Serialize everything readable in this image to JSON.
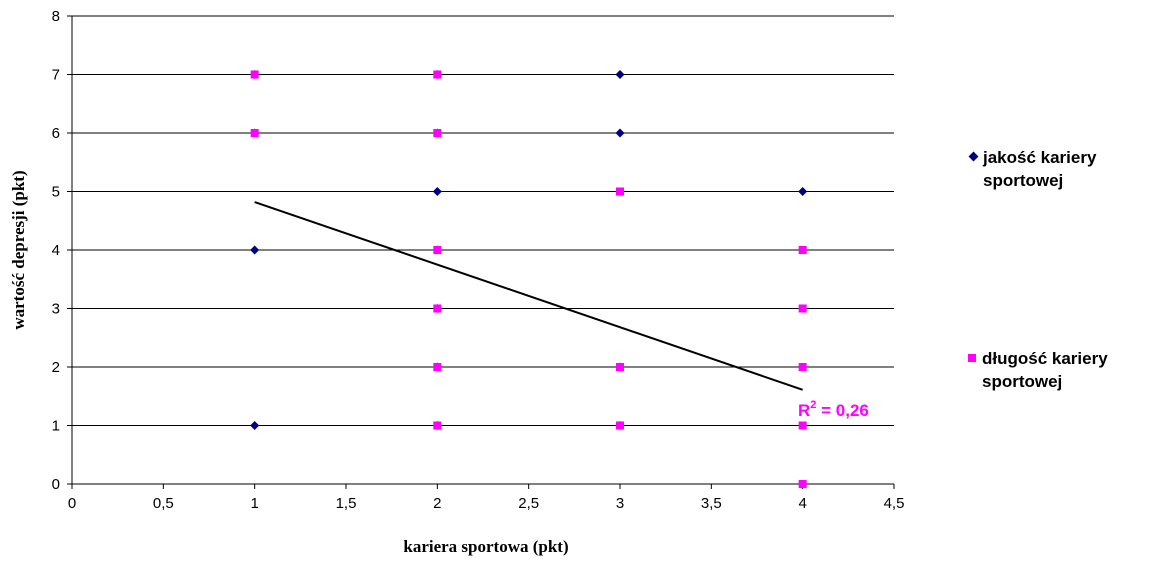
{
  "chart_data": {
    "type": "scatter",
    "title": "",
    "xlabel": "kariera sportowa (pkt)",
    "ylabel": "wartość depresji (pkt)",
    "xlim": [
      0,
      4.5
    ],
    "ylim": [
      0,
      8
    ],
    "x_ticks": [
      "0",
      "0,5",
      "1",
      "1,5",
      "2",
      "2,5",
      "3",
      "3,5",
      "4",
      "4,5"
    ],
    "y_ticks": [
      "0",
      "1",
      "2",
      "3",
      "4",
      "5",
      "6",
      "7",
      "8"
    ],
    "grid": "horizontal",
    "legend_position": "right",
    "series": [
      {
        "name": "jakość kariery sportowej",
        "marker": "diamond",
        "color": "#000080",
        "points": [
          [
            1,
            7
          ],
          [
            1,
            6
          ],
          [
            1,
            4
          ],
          [
            1,
            1
          ],
          [
            2,
            7
          ],
          [
            2,
            6
          ],
          [
            2,
            5
          ],
          [
            2,
            4
          ],
          [
            2,
            3
          ],
          [
            2,
            2
          ],
          [
            2,
            1
          ],
          [
            3,
            7
          ],
          [
            3,
            6
          ],
          [
            3,
            2
          ],
          [
            3,
            1
          ],
          [
            4,
            5
          ]
        ]
      },
      {
        "name": "długość kariery sportowej",
        "marker": "square",
        "color": "#ff00ff",
        "points": [
          [
            1,
            7
          ],
          [
            1,
            6
          ],
          [
            2,
            7
          ],
          [
            2,
            6
          ],
          [
            2,
            4
          ],
          [
            2,
            3
          ],
          [
            2,
            2
          ],
          [
            2,
            1
          ],
          [
            3,
            5
          ],
          [
            3,
            2
          ],
          [
            3,
            1
          ],
          [
            4,
            4
          ],
          [
            4,
            3
          ],
          [
            4,
            2
          ],
          [
            4,
            1
          ],
          [
            4,
            0
          ]
        ]
      }
    ],
    "trendline": {
      "x_range": [
        1,
        4
      ],
      "y_values": [
        4.82,
        1.61
      ],
      "color": "#000000",
      "r2_label": {
        "prefix": "R",
        "superscript": "2",
        "suffix": " = 0,26"
      }
    }
  }
}
